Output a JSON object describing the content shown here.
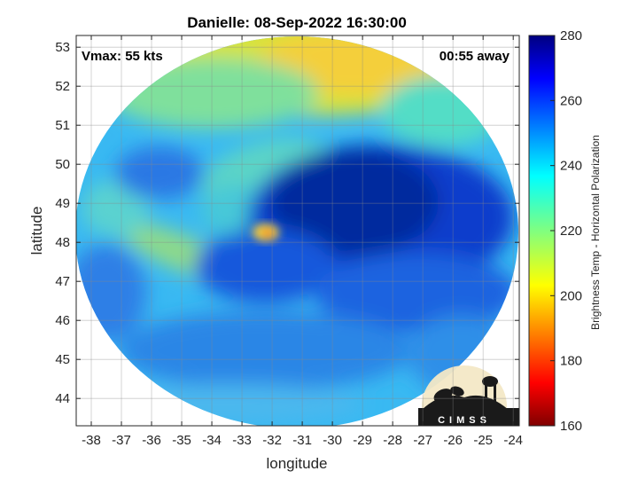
{
  "title": "Danielle: 08-Sep-2022 16:30:00",
  "vmax_label": "Vmax: 55 kts",
  "time_away_label": "00:55 away",
  "xlabel": "longitude",
  "ylabel": "latitude",
  "colorbar_label": "Brightness Temp - Horizontal Polarization",
  "logo_text": "CIMSS",
  "chart_data": {
    "type": "heatmap",
    "title": "Danielle: 08-Sep-2022 16:30:00",
    "xlabel": "longitude",
    "ylabel": "latitude",
    "xlim": [
      -38.5,
      -23.8
    ],
    "ylim": [
      43.3,
      53.3
    ],
    "x_ticks": [
      -38,
      -37,
      -36,
      -35,
      -34,
      -33,
      -32,
      -31,
      -30,
      -29,
      -28,
      -27,
      -26,
      -25,
      -24
    ],
    "y_ticks": [
      44,
      45,
      46,
      47,
      48,
      49,
      50,
      51,
      52,
      53
    ],
    "grid": true,
    "colorbar": {
      "label": "Brightness Temp - Horizontal Polarization",
      "range": [
        160,
        280
      ],
      "ticks": [
        160,
        180,
        200,
        220,
        240,
        260,
        280
      ],
      "colormap": "jet"
    },
    "center_warm_spot": {
      "lon": -32.1,
      "lat": 48.1
    },
    "annotations": [
      "Vmax: 55 kts",
      "00:55 away"
    ]
  },
  "colors": {
    "background": "#ffffff",
    "axis": "#262626",
    "grid": "#dcdcdc"
  }
}
